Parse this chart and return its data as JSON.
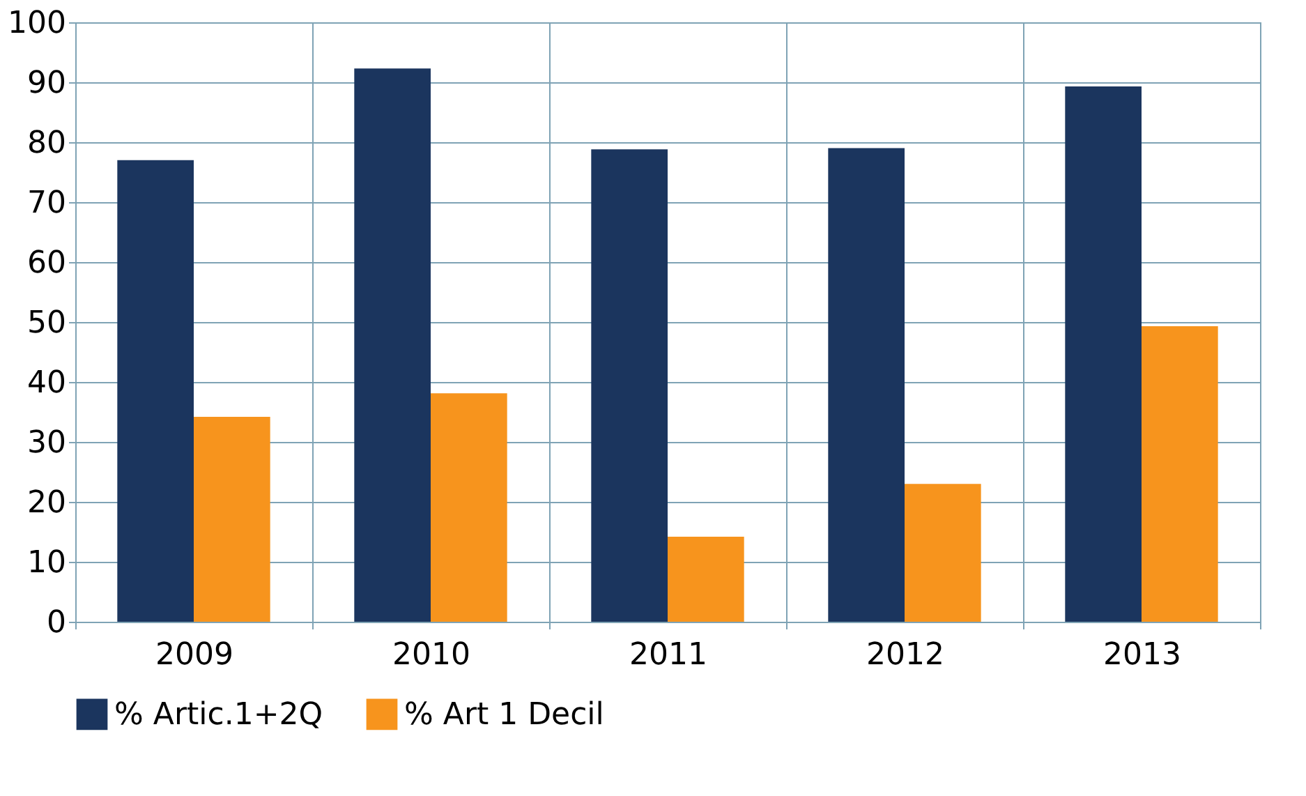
{
  "chart_data": {
    "type": "bar",
    "categories": [
      "2009",
      "2010",
      "2011",
      "2012",
      "2013"
    ],
    "series": [
      {
        "name": "% Artic.1+2Q",
        "color": "#1b355e",
        "values": [
          77,
          92.3,
          78.8,
          79,
          89.3
        ]
      },
      {
        "name": "% Art 1 Decil",
        "color": "#f7941d",
        "values": [
          34.2,
          38.1,
          14.2,
          23,
          49.3
        ]
      }
    ],
    "ylim": [
      0,
      100
    ],
    "yticks": [
      0,
      10,
      20,
      30,
      40,
      50,
      60,
      70,
      80,
      90,
      100
    ],
    "grid": true,
    "legend": "bottom left"
  }
}
